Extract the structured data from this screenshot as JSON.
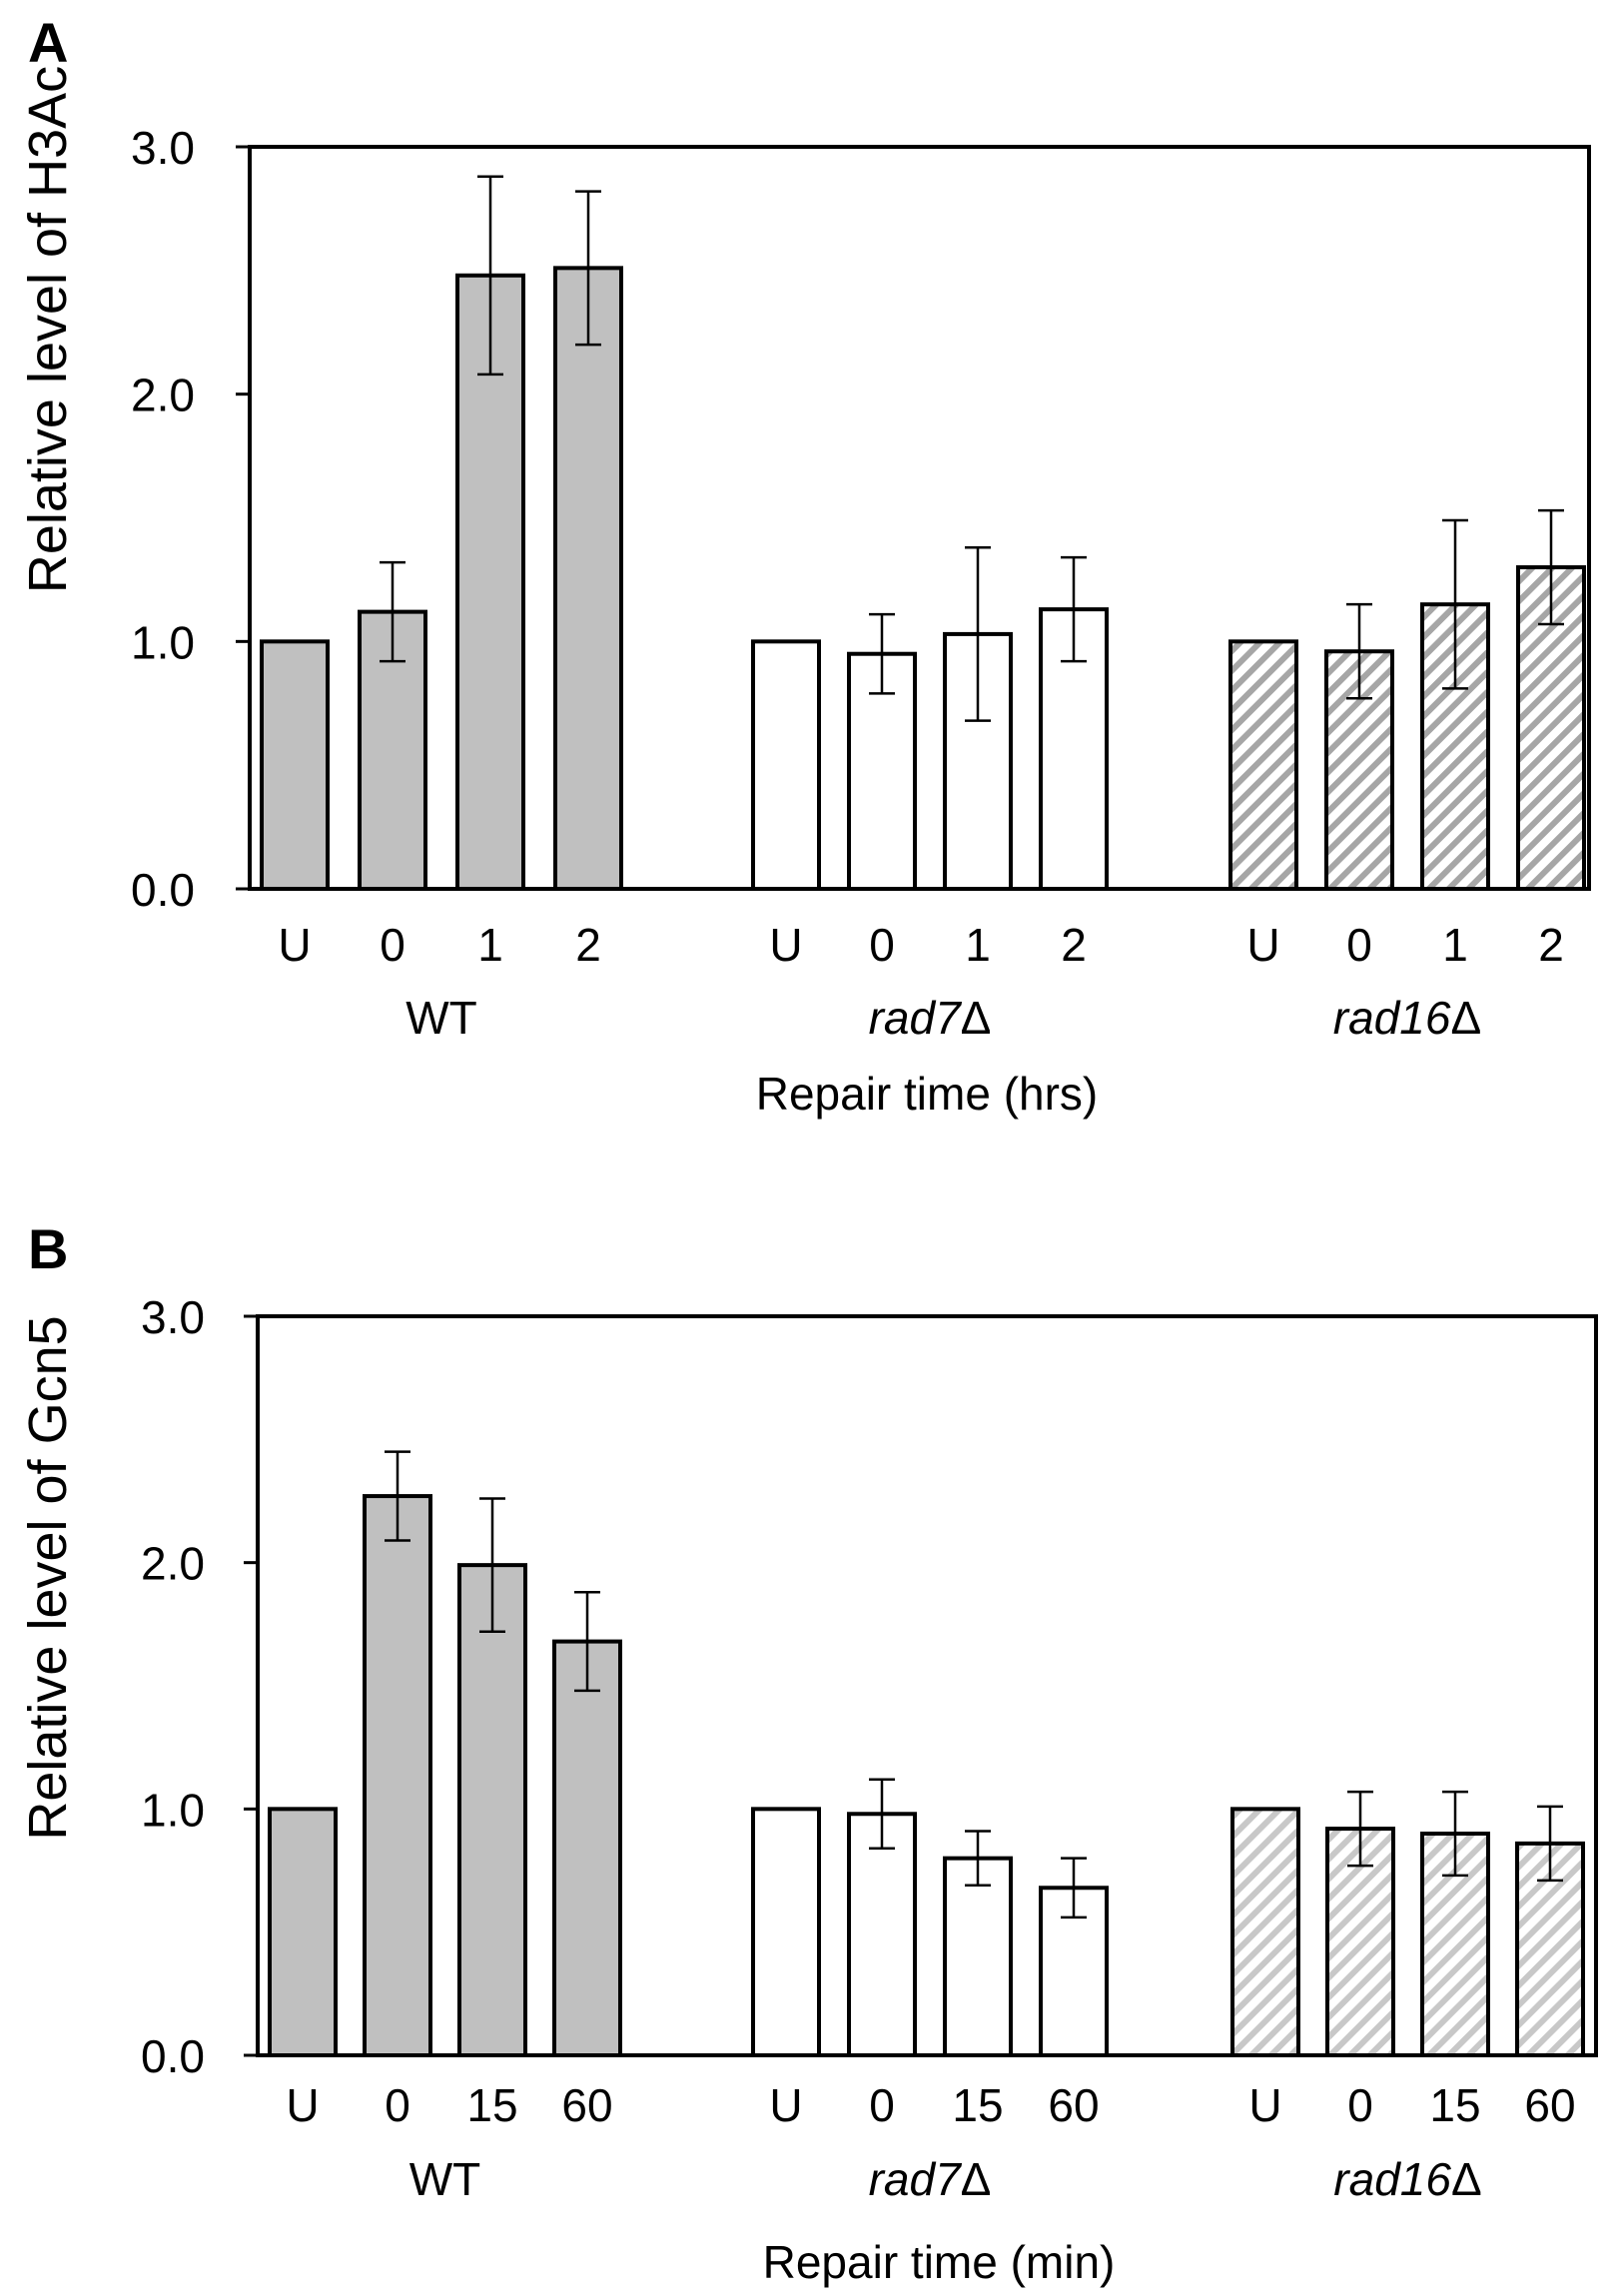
{
  "chart_data": [
    {
      "type": "bar",
      "panel_label": "A",
      "ylabel": "Relative level of H3Ac",
      "xlabel": "Repair time (hrs)",
      "ylim": [
        0,
        3
      ],
      "yticks": [
        "0.0",
        "1.0",
        "2.0",
        "3.0"
      ],
      "groups": [
        {
          "name": "WT",
          "italic": false,
          "fill": "#c0c0c0",
          "pattern": "solid",
          "categories": [
            "U",
            "0",
            "1",
            "2"
          ],
          "values": [
            1.0,
            1.12,
            2.48,
            2.51
          ],
          "errors": [
            0,
            0.2,
            0.4,
            0.31
          ]
        },
        {
          "name": "rad7",
          "suffix": "Δ",
          "italic": true,
          "fill": "#ffffff",
          "pattern": "none",
          "categories": [
            "U",
            "0",
            "1",
            "2"
          ],
          "values": [
            1.0,
            0.95,
            1.03,
            1.13
          ],
          "errors": [
            0,
            0.16,
            0.35,
            0.21
          ]
        },
        {
          "name": "rad16",
          "suffix": "Δ",
          "italic": true,
          "fill": "#a6a6a6",
          "pattern": "hatch",
          "categories": [
            "U",
            "0",
            "1",
            "2"
          ],
          "values": [
            1.0,
            0.96,
            1.15,
            1.3
          ],
          "errors": [
            0,
            0.19,
            0.34,
            0.23
          ]
        }
      ]
    },
    {
      "type": "bar",
      "panel_label": "B",
      "ylabel": "Relative level of Gcn5",
      "xlabel": "Repair time (min)",
      "ylim": [
        0,
        3
      ],
      "yticks": [
        "0.0",
        "1.0",
        "2.0",
        "3.0"
      ],
      "groups": [
        {
          "name": "WT",
          "italic": false,
          "fill": "#c0c0c0",
          "pattern": "solid",
          "categories": [
            "U",
            "0",
            "15",
            "60"
          ],
          "values": [
            1.0,
            2.27,
            1.99,
            1.68
          ],
          "errors": [
            0,
            0.18,
            0.27,
            0.2
          ]
        },
        {
          "name": "rad7",
          "suffix": "Δ",
          "italic": true,
          "fill": "#ffffff",
          "pattern": "none",
          "categories": [
            "U",
            "0",
            "15",
            "60"
          ],
          "values": [
            1.0,
            0.98,
            0.8,
            0.68
          ],
          "errors": [
            0,
            0.14,
            0.11,
            0.12
          ]
        },
        {
          "name": "rad16",
          "suffix": "Δ",
          "italic": true,
          "fill": "#c8c8c8",
          "pattern": "hatch",
          "categories": [
            "U",
            "0",
            "15",
            "60"
          ],
          "values": [
            1.0,
            0.92,
            0.9,
            0.86
          ],
          "errors": [
            0,
            0.15,
            0.17,
            0.15
          ]
        }
      ]
    }
  ]
}
